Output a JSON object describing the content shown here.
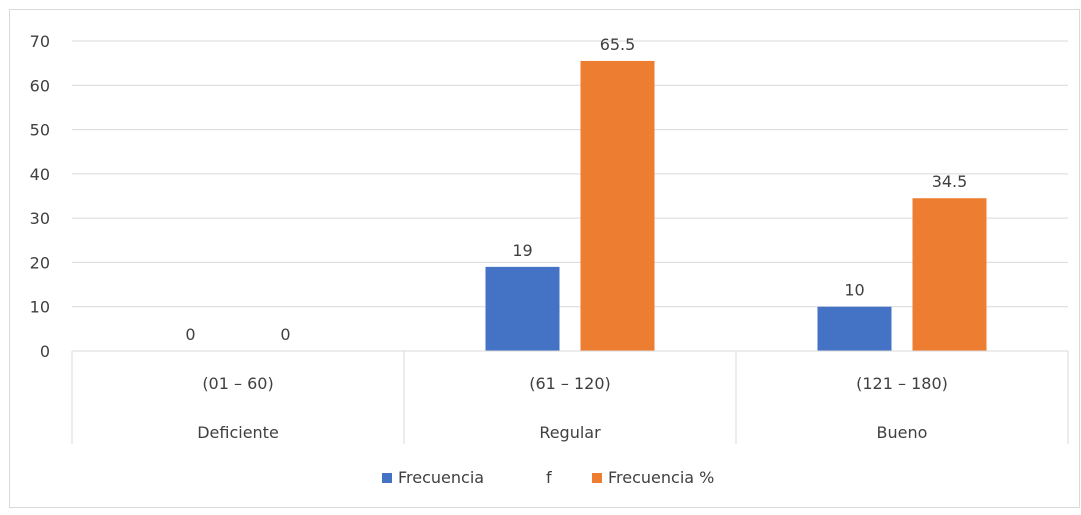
{
  "chart_data": {
    "type": "bar",
    "categories": [
      {
        "range": "(01 – 60)",
        "level": "Deficiente"
      },
      {
        "range": "(61 – 120)",
        "level": "Regular"
      },
      {
        "range": "(121 – 180)",
        "level": "Bueno"
      }
    ],
    "series": [
      {
        "name": "Frecuencia",
        "suffix": "f",
        "color": "#4472C4",
        "values": [
          0,
          19,
          10
        ]
      },
      {
        "name": "Frecuencia %",
        "color": "#ED7D31",
        "values": [
          0,
          65.5,
          34.5
        ]
      }
    ],
    "title": "",
    "xlabel": "",
    "ylabel": "",
    "ylim": [
      0,
      70
    ],
    "yticks": [
      0,
      10,
      20,
      30,
      40,
      50,
      60,
      70
    ],
    "grid": true,
    "legend": "bottom",
    "data_labels": true
  }
}
